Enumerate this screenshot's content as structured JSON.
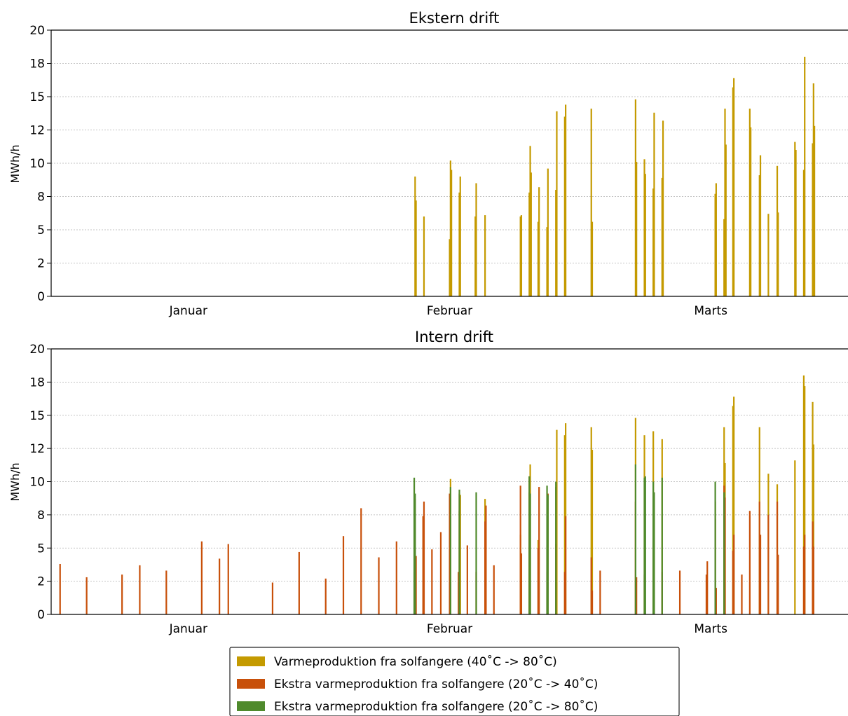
{
  "chart_data": [
    {
      "type": "bar",
      "title": "Ekstern drift",
      "ylabel": "MWh/h",
      "xlabel": "",
      "ylim": [
        0,
        20
      ],
      "yticks": [
        {
          "value": 0,
          "label": "0"
        },
        {
          "value": 2.5,
          "label": "2"
        },
        {
          "value": 5,
          "label": "5"
        },
        {
          "value": 7.5,
          "label": "8"
        },
        {
          "value": 10,
          "label": "10"
        },
        {
          "value": 12.5,
          "label": "12"
        },
        {
          "value": 15,
          "label": "15"
        },
        {
          "value": 17.5,
          "label": "18"
        },
        {
          "value": 20,
          "label": "20"
        }
      ],
      "xlim": [
        0,
        90
      ],
      "month_labels": [
        {
          "label": "Januar",
          "pos": 15.5
        },
        {
          "label": "Februar",
          "pos": 45
        },
        {
          "label": "Marts",
          "pos": 74.5
        }
      ],
      "grid": true,
      "series": [
        {
          "name": "Varmeproduktion fra solfangere (40˚C -> 80˚C)",
          "color": "#c49a00",
          "x": [
            41.1,
            41.2,
            42.1,
            45.0,
            45.1,
            45.2,
            46.1,
            46.2,
            47.9,
            48.0,
            49.0,
            53.0,
            53.1,
            54.0,
            54.1,
            54.2,
            55.0,
            55.1,
            56.0,
            56.1,
            57.0,
            57.1,
            58.0,
            58.1,
            61.0,
            61.1,
            66.0,
            66.1,
            67.0,
            67.1,
            68.0,
            68.1,
            69.0,
            69.1,
            75.0,
            75.1,
            76.0,
            76.1,
            76.2,
            77.0,
            77.1,
            78.9,
            79.0,
            80.0,
            80.1,
            81.0,
            82.0,
            82.1,
            84.0,
            84.1,
            85.0,
            85.1,
            86.0,
            86.1,
            86.2
          ],
          "values": [
            9.0,
            7.2,
            6.0,
            4.3,
            10.2,
            9.5,
            7.8,
            9.0,
            6.0,
            8.5,
            6.1,
            6.0,
            6.1,
            7.8,
            11.3,
            9.3,
            5.6,
            8.2,
            5.2,
            9.6,
            8.0,
            13.9,
            13.5,
            14.4,
            14.1,
            5.6,
            14.8,
            10.1,
            10.3,
            9.2,
            8.1,
            13.8,
            8.9,
            13.2,
            7.7,
            8.5,
            5.8,
            14.1,
            11.4,
            15.7,
            16.4,
            14.1,
            12.7,
            9.1,
            10.6,
            6.2,
            9.8,
            6.3,
            11.6,
            11.0,
            9.5,
            18.0,
            11.5,
            16.0,
            12.8
          ]
        }
      ]
    },
    {
      "type": "bar",
      "title": "Intern drift",
      "ylabel": "MWh/h",
      "xlabel": "",
      "ylim": [
        0,
        20
      ],
      "yticks": [
        {
          "value": 0,
          "label": "0"
        },
        {
          "value": 2.5,
          "label": "2"
        },
        {
          "value": 5,
          "label": "5"
        },
        {
          "value": 7.5,
          "label": "8"
        },
        {
          "value": 10,
          "label": "10"
        },
        {
          "value": 12.5,
          "label": "12"
        },
        {
          "value": 15,
          "label": "15"
        },
        {
          "value": 17.5,
          "label": "18"
        },
        {
          "value": 20,
          "label": "20"
        }
      ],
      "xlim": [
        0,
        90
      ],
      "month_labels": [
        {
          "label": "Januar",
          "pos": 15.5
        },
        {
          "label": "Februar",
          "pos": 45
        },
        {
          "label": "Marts",
          "pos": 74.5
        }
      ],
      "grid": true,
      "series": [
        {
          "name": "Varmeproduktion fra solfangere (40˚C -> 80˚C)",
          "color": "#c49a00",
          "x": [
            45.0,
            45.1,
            46.1,
            46.2,
            49.0,
            53.0,
            54.0,
            54.1,
            55.0,
            56.0,
            57.0,
            57.1,
            58.0,
            58.1,
            61.0,
            61.1,
            66.0,
            67.0,
            68.0,
            69.0,
            75.0,
            76.0,
            76.1,
            77.0,
            77.1,
            80.0,
            81.0,
            82.0,
            84.0,
            85.0,
            85.1,
            86.0,
            86.1
          ],
          "values": [
            9.0,
            10.2,
            7.8,
            9.0,
            8.7,
            6.0,
            10.4,
            11.3,
            5.6,
            5.2,
            9.6,
            13.9,
            13.5,
            14.4,
            14.1,
            12.4,
            14.8,
            13.5,
            13.8,
            13.2,
            8.5,
            14.1,
            11.4,
            15.7,
            16.4,
            14.1,
            10.6,
            9.8,
            11.6,
            18.0,
            17.2,
            16.0,
            12.8
          ]
        },
        {
          "name": "Ekstra varmeproduktion fra solfangere (20˚C -> 40˚C)",
          "color": "#c8500a",
          "x": [
            1.0,
            4.0,
            8.0,
            10.0,
            13.0,
            17.0,
            19.0,
            20.0,
            25.0,
            28.0,
            31.0,
            33.0,
            35.0,
            37.0,
            39.0,
            41.0,
            41.1,
            41.2,
            42.0,
            42.1,
            43.0,
            44.0,
            45.0,
            45.1,
            46.0,
            46.1,
            47.0,
            48.0,
            49.0,
            49.1,
            50.0,
            53.0,
            53.1,
            54.0,
            55.0,
            55.1,
            56.0,
            56.1,
            57.0,
            58.0,
            58.1,
            61.0,
            61.1,
            62.0,
            66.0,
            66.1,
            67.0,
            68.0,
            69.0,
            71.0,
            74.0,
            74.1,
            75.0,
            75.1,
            76.0,
            76.1,
            77.0,
            77.1,
            78.0,
            78.9,
            80.0,
            80.1,
            81.0,
            82.0,
            82.1,
            85.0,
            85.1,
            86.0,
            86.1
          ],
          "values": [
            3.8,
            2.8,
            3.0,
            3.7,
            3.3,
            5.5,
            4.2,
            5.3,
            2.4,
            4.7,
            2.7,
            5.9,
            8.0,
            4.3,
            5.5,
            3.2,
            8.7,
            4.4,
            7.4,
            8.5,
            4.9,
            6.2,
            9.1,
            8.7,
            3.2,
            9.1,
            5.2,
            3.2,
            7.0,
            8.2,
            3.7,
            9.7,
            4.6,
            9.2,
            5.0,
            9.6,
            3.2,
            9.1,
            5.3,
            3.2,
            7.4,
            4.3,
            1.8,
            3.3,
            8.5,
            2.8,
            3.0,
            5.5,
            3.2,
            3.3,
            3.0,
            4.0,
            7.2,
            2.0,
            9.7,
            8.8,
            4.8,
            6.0,
            3.0,
            7.8,
            8.5,
            6.0,
            7.5,
            8.5,
            4.5,
            5.1,
            6.0,
            7.0,
            5.1
          ]
        },
        {
          "name": "Ekstra varmeproduktion fra solfangere (20˚C -> 80˚C)",
          "color": "#4f8a2c",
          "x": [
            41.0,
            41.1,
            45.1,
            46.1,
            48.0,
            54.0,
            54.1,
            56.0,
            56.1,
            57.0,
            66.0,
            67.0,
            67.1,
            68.0,
            68.1,
            69.0,
            75.0,
            76.0
          ],
          "values": [
            10.3,
            9.1,
            9.6,
            9.4,
            9.2,
            10.4,
            9.1,
            9.7,
            9.0,
            10.0,
            11.3,
            10.3,
            10.4,
            10.0,
            9.2,
            10.3,
            10.0,
            9.2
          ]
        }
      ]
    }
  ],
  "legend": {
    "placement": "bottom-center",
    "items": [
      {
        "label": "Varmeproduktion fra solfangere (40˚C -> 80˚C)",
        "color": "#c49a00"
      },
      {
        "label": "Ekstra varmeproduktion fra solfangere (20˚C -> 40˚C)",
        "color": "#c8500a"
      },
      {
        "label": "Ekstra varmeproduktion fra solfangere (20˚C -> 80˚C)",
        "color": "#4f8a2c"
      }
    ]
  }
}
